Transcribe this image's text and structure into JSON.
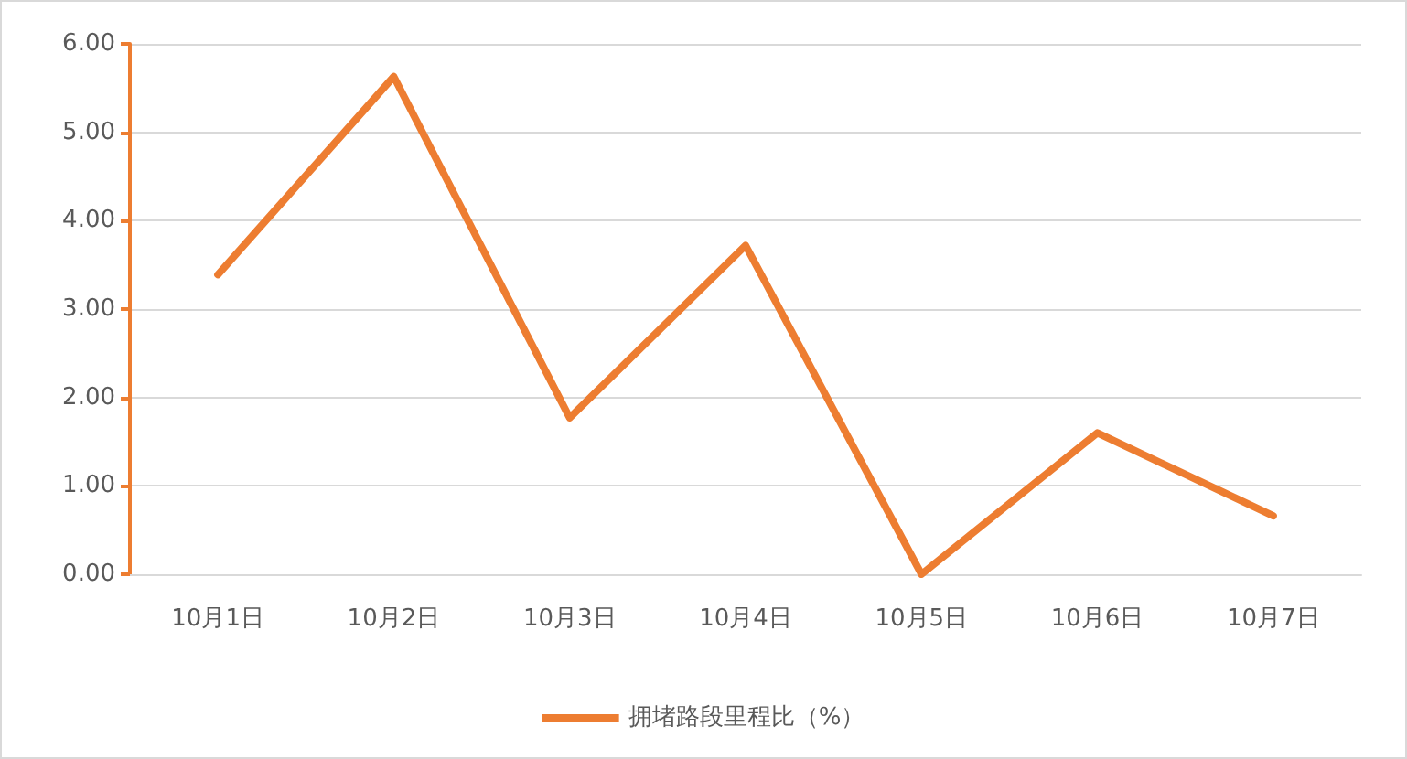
{
  "chart_data": {
    "type": "line",
    "categories": [
      "10月1日",
      "10月2日",
      "10月3日",
      "10月4日",
      "10月5日",
      "10月6日",
      "10月7日"
    ],
    "series": [
      {
        "name": "拥堵路段里程比（%）",
        "color": "#ed7d31",
        "values": [
          3.39,
          5.63,
          1.77,
          3.72,
          0.0,
          1.6,
          0.66
        ]
      }
    ],
    "ylim": [
      0,
      6
    ],
    "yticks": [
      {
        "value": 0,
        "label": "0.00"
      },
      {
        "value": 1,
        "label": "1.00"
      },
      {
        "value": 2,
        "label": "2.00"
      },
      {
        "value": 3,
        "label": "3.00"
      },
      {
        "value": 4,
        "label": "4.00"
      },
      {
        "value": 5,
        "label": "5.00"
      },
      {
        "value": 6,
        "label": "6.00"
      }
    ],
    "grid": "y",
    "legend": "bottom",
    "marker": "none",
    "line_style": "solid"
  }
}
